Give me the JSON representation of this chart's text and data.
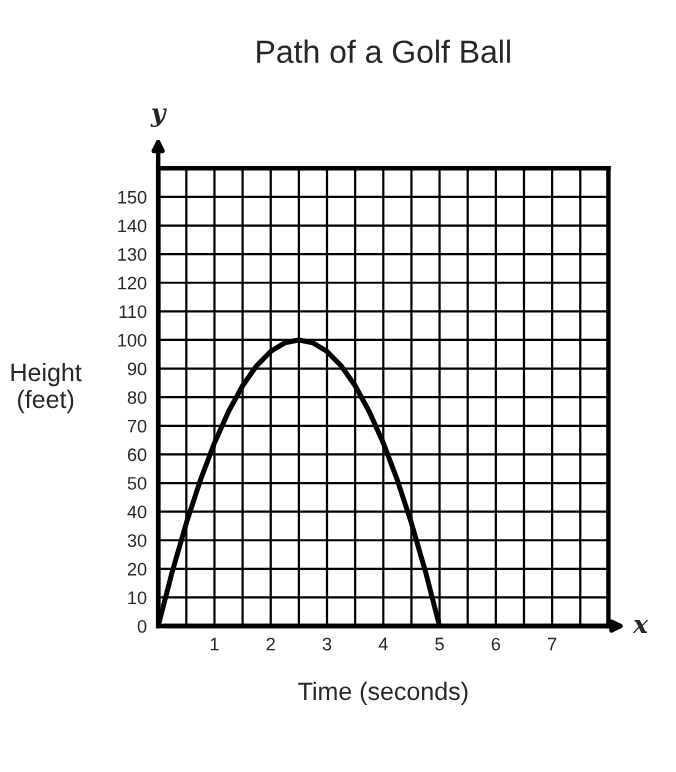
{
  "chart_data": {
    "type": "line",
    "title": "Path of a Golf Ball",
    "xlabel": "Time (seconds)",
    "ylabel": "Height\n(feet)",
    "annotations": [
      "x",
      "y"
    ],
    "x": [
      0,
      0.25,
      0.5,
      0.75,
      1,
      1.25,
      1.5,
      1.75,
      2,
      2.25,
      2.5,
      2.75,
      3,
      3.25,
      3.5,
      3.75,
      4,
      4.25,
      4.5,
      4.75,
      5
    ],
    "series": [
      {
        "color": "#000000",
        "values": [
          0,
          19,
          36,
          51,
          64,
          75,
          84,
          91,
          96,
          99,
          100,
          99,
          96,
          91,
          84,
          75,
          64,
          51,
          36,
          19,
          0
        ]
      }
    ],
    "xlim": [
      0,
      8
    ],
    "ylim": [
      0,
      160
    ],
    "xticks": [
      {
        "value": 0.5,
        "label": null
      },
      1,
      {
        "value": 1.5,
        "label": null
      },
      2,
      {
        "value": 2.5,
        "label": null
      },
      3,
      {
        "value": 3.5,
        "label": null
      },
      4,
      {
        "value": 4.5,
        "label": null
      },
      5,
      {
        "value": 5.5,
        "label": null
      },
      6,
      {
        "value": 6.5,
        "label": null
      },
      7,
      {
        "value": 7.5,
        "label": null
      }
    ],
    "yticks": [
      0,
      10,
      20,
      30,
      40,
      50,
      60,
      70,
      80,
      90,
      100,
      110,
      120,
      130,
      140,
      150,
      {
        "value": 160,
        "label": null
      }
    ],
    "grid": true,
    "line_style": "solid",
    "marker": "none"
  }
}
